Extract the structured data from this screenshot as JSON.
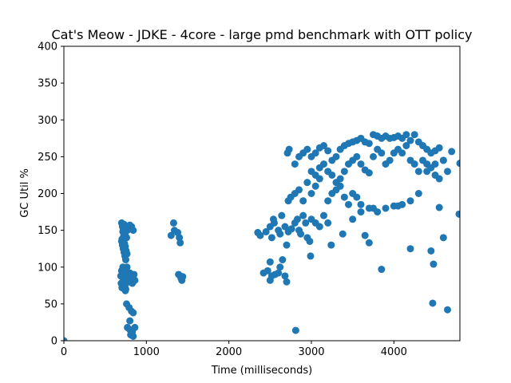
{
  "chart_data": {
    "type": "scatter",
    "title": "Cat's Meow - JDKE - 4core -  large pmd benchmark with OTT policy",
    "xlabel": "Time (milliseconds)",
    "ylabel": "GC Util %",
    "xlim": [
      0,
      4800
    ],
    "ylim": [
      0,
      400
    ],
    "xticks": [
      0,
      1000,
      2000,
      3000,
      4000
    ],
    "yticks": [
      0,
      50,
      100,
      150,
      200,
      250,
      300,
      350,
      400
    ],
    "grid": false,
    "legend": "none",
    "marker_color": "#1f77b4",
    "series": [
      {
        "points": [
          [
            0,
            0
          ],
          [
            700,
            160
          ],
          [
            710,
            155
          ],
          [
            720,
            150
          ],
          [
            730,
            158
          ],
          [
            740,
            145
          ],
          [
            750,
            152
          ],
          [
            760,
            140
          ],
          [
            700,
            135
          ],
          [
            710,
            130
          ],
          [
            720,
            125
          ],
          [
            730,
            120
          ],
          [
            740,
            115
          ],
          [
            750,
            110
          ],
          [
            705,
            138
          ],
          [
            715,
            148
          ],
          [
            725,
            142
          ],
          [
            735,
            132
          ],
          [
            745,
            128
          ],
          [
            755,
            122
          ],
          [
            765,
            118
          ],
          [
            770,
            150
          ],
          [
            780,
            155
          ],
          [
            800,
            157
          ],
          [
            820,
            155
          ],
          [
            840,
            150
          ],
          [
            700,
            95
          ],
          [
            710,
            90
          ],
          [
            720,
            85
          ],
          [
            730,
            80
          ],
          [
            740,
            75
          ],
          [
            750,
            70
          ],
          [
            760,
            95
          ],
          [
            770,
            90
          ],
          [
            780,
            85
          ],
          [
            790,
            80
          ],
          [
            800,
            92
          ],
          [
            810,
            88
          ],
          [
            820,
            83
          ],
          [
            830,
            78
          ],
          [
            840,
            86
          ],
          [
            850,
            90
          ],
          [
            860,
            82
          ],
          [
            690,
            88
          ],
          [
            695,
            78
          ],
          [
            705,
            72
          ],
          [
            715,
            100
          ],
          [
            725,
            96
          ],
          [
            745,
            68
          ],
          [
            765,
            100
          ],
          [
            760,
            50
          ],
          [
            790,
            45
          ],
          [
            820,
            40
          ],
          [
            840,
            38
          ],
          [
            800,
            27
          ],
          [
            770,
            18
          ],
          [
            800,
            15
          ],
          [
            830,
            12
          ],
          [
            810,
            8
          ],
          [
            840,
            6
          ],
          [
            860,
            18
          ],
          [
            1330,
            160
          ],
          [
            1340,
            150
          ],
          [
            1300,
            143
          ],
          [
            1380,
            147
          ],
          [
            1400,
            140
          ],
          [
            1410,
            133
          ],
          [
            1390,
            90
          ],
          [
            1410,
            88
          ],
          [
            1420,
            85
          ],
          [
            1430,
            82
          ],
          [
            1440,
            87
          ],
          [
            2350,
            147
          ],
          [
            2380,
            143
          ],
          [
            2450,
            148
          ],
          [
            2500,
            155
          ],
          [
            2550,
            160
          ],
          [
            2520,
            140
          ],
          [
            2420,
            92
          ],
          [
            2470,
            95
          ],
          [
            2500,
            82
          ],
          [
            2520,
            88
          ],
          [
            2560,
            90
          ],
          [
            2600,
            92
          ],
          [
            2620,
            100
          ],
          [
            2650,
            110
          ],
          [
            2680,
            88
          ],
          [
            2700,
            80
          ],
          [
            2500,
            107
          ],
          [
            2540,
            165
          ],
          [
            2600,
            150
          ],
          [
            2620,
            145
          ],
          [
            2640,
            170
          ],
          [
            2680,
            155
          ],
          [
            2700,
            130
          ],
          [
            2720,
            148
          ],
          [
            2760,
            152
          ],
          [
            2800,
            160
          ],
          [
            2830,
            165
          ],
          [
            2850,
            150
          ],
          [
            2870,
            145
          ],
          [
            2900,
            170
          ],
          [
            2930,
            160
          ],
          [
            2950,
            140
          ],
          [
            2980,
            135
          ],
          [
            2990,
            115
          ],
          [
            3000,
            165
          ],
          [
            3050,
            160
          ],
          [
            3100,
            155
          ],
          [
            3150,
            170
          ],
          [
            3200,
            160
          ],
          [
            3240,
            130
          ],
          [
            2720,
            190
          ],
          [
            2750,
            195
          ],
          [
            2800,
            200
          ],
          [
            2850,
            205
          ],
          [
            2900,
            190
          ],
          [
            2950,
            215
          ],
          [
            3000,
            200
          ],
          [
            3050,
            210
          ],
          [
            3100,
            220
          ],
          [
            3200,
            190
          ],
          [
            3250,
            200
          ],
          [
            3300,
            205
          ],
          [
            3350,
            210
          ],
          [
            3400,
            195
          ],
          [
            3450,
            185
          ],
          [
            3500,
            200
          ],
          [
            3550,
            195
          ],
          [
            3600,
            185
          ],
          [
            3700,
            180
          ],
          [
            3750,
            180
          ],
          [
            3800,
            175
          ],
          [
            3900,
            180
          ],
          [
            4000,
            183
          ],
          [
            4050,
            183
          ],
          [
            4100,
            185
          ],
          [
            4200,
            190
          ],
          [
            4300,
            200
          ],
          [
            4400,
            230
          ],
          [
            4500,
            225
          ],
          [
            2710,
            255
          ],
          [
            2730,
            260
          ],
          [
            2800,
            240
          ],
          [
            2850,
            250
          ],
          [
            2900,
            255
          ],
          [
            2950,
            260
          ],
          [
            3000,
            250
          ],
          [
            3050,
            255
          ],
          [
            3100,
            262
          ],
          [
            3150,
            265
          ],
          [
            3200,
            258
          ],
          [
            3250,
            245
          ],
          [
            3300,
            250
          ],
          [
            3350,
            260
          ],
          [
            3400,
            265
          ],
          [
            3450,
            268
          ],
          [
            3500,
            270
          ],
          [
            3550,
            272
          ],
          [
            3600,
            275
          ],
          [
            3650,
            270
          ],
          [
            3700,
            268
          ],
          [
            3750,
            280
          ],
          [
            3800,
            278
          ],
          [
            3850,
            275
          ],
          [
            3900,
            278
          ],
          [
            3950,
            275
          ],
          [
            4000,
            276
          ],
          [
            4050,
            278
          ],
          [
            4100,
            275
          ],
          [
            4150,
            280
          ],
          [
            4200,
            272
          ],
          [
            4250,
            280
          ],
          [
            4300,
            270
          ],
          [
            4350,
            265
          ],
          [
            4400,
            260
          ],
          [
            4450,
            255
          ],
          [
            4500,
            258
          ],
          [
            4550,
            262
          ],
          [
            4600,
            245
          ],
          [
            4650,
            230
          ],
          [
            4700,
            257
          ],
          [
            4800,
            241
          ],
          [
            3000,
            230
          ],
          [
            3050,
            225
          ],
          [
            3100,
            235
          ],
          [
            3150,
            240
          ],
          [
            3200,
            230
          ],
          [
            3250,
            225
          ],
          [
            3300,
            215
          ],
          [
            3350,
            220
          ],
          [
            3400,
            230
          ],
          [
            3450,
            240
          ],
          [
            3500,
            245
          ],
          [
            3550,
            250
          ],
          [
            3600,
            240
          ],
          [
            3650,
            232
          ],
          [
            3700,
            228
          ],
          [
            3750,
            250
          ],
          [
            3800,
            260
          ],
          [
            3850,
            255
          ],
          [
            3900,
            240
          ],
          [
            3950,
            245
          ],
          [
            4000,
            255
          ],
          [
            4050,
            260
          ],
          [
            4100,
            255
          ],
          [
            4150,
            265
          ],
          [
            4200,
            245
          ],
          [
            4250,
            240
          ],
          [
            4300,
            230
          ],
          [
            4350,
            245
          ],
          [
            4400,
            240
          ],
          [
            4450,
            235
          ],
          [
            4500,
            240
          ],
          [
            4550,
            220
          ],
          [
            4600,
            245
          ],
          [
            3380,
            145
          ],
          [
            3500,
            165
          ],
          [
            3600,
            175
          ],
          [
            3650,
            143
          ],
          [
            3700,
            133
          ],
          [
            3850,
            97
          ],
          [
            4200,
            125
          ],
          [
            4450,
            122
          ],
          [
            4480,
            104
          ],
          [
            4550,
            181
          ],
          [
            4600,
            140
          ],
          [
            4650,
            42
          ],
          [
            4470,
            51
          ],
          [
            4790,
            172
          ],
          [
            2810,
            14
          ]
        ]
      }
    ]
  }
}
